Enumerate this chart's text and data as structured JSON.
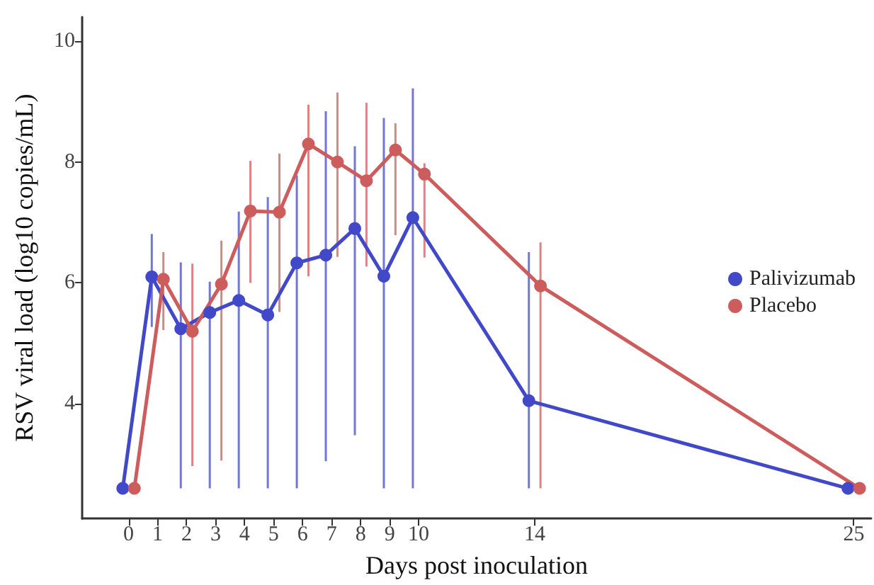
{
  "chart_data": {
    "type": "line",
    "xlabel": "Days post inoculation",
    "ylabel": "RSV viral load (log10 copies/mL)",
    "xlim": [
      -1.6,
      25.6
    ],
    "xticks": [
      0,
      1,
      2,
      3,
      4,
      5,
      6,
      7,
      8,
      9,
      10,
      14,
      25
    ],
    "ylim": [
      2.1,
      10.4
    ],
    "yticks": [
      4,
      6,
      8,
      10
    ],
    "grid": false,
    "legend": "right",
    "marker": "circle",
    "line_style": "solid",
    "series": [
      {
        "name": "Palivizumab",
        "color": "#4149c9",
        "x": [
          -0.2,
          0.8,
          1.8,
          2.8,
          3.8,
          4.8,
          5.8,
          6.8,
          7.8,
          8.8,
          9.8,
          13.8,
          24.8
        ],
        "values": [
          2.6,
          6.1,
          5.24,
          5.51,
          5.71,
          5.47,
          6.33,
          6.46,
          6.9,
          6.11,
          7.08,
          4.05,
          2.6
        ],
        "errors": [
          null,
          [
            5.27,
            6.81
          ],
          [
            2.6,
            6.34
          ],
          [
            2.6,
            6.02
          ],
          [
            2.6,
            7.18
          ],
          [
            2.6,
            7.42
          ],
          [
            2.6,
            7.78
          ],
          [
            3.05,
            8.84
          ],
          [
            3.48,
            8.26
          ],
          [
            2.6,
            8.73
          ],
          [
            2.6,
            9.22
          ],
          [
            2.6,
            6.51
          ],
          null
        ]
      },
      {
        "name": "Placebo",
        "color": "#cd5c5c",
        "x": [
          0.2,
          1.2,
          2.2,
          3.2,
          4.2,
          5.2,
          6.2,
          7.2,
          8.2,
          9.2,
          10.2,
          14.2,
          25.2
        ],
        "values": [
          2.6,
          6.06,
          5.2,
          5.98,
          7.19,
          7.17,
          8.3,
          8.0,
          7.69,
          8.2,
          7.8,
          5.95,
          2.6
        ],
        "errors": [
          null,
          [
            5.22,
            6.51
          ],
          [
            2.97,
            6.32
          ],
          [
            3.06,
            6.7
          ],
          [
            6.0,
            8.02
          ],
          [
            5.52,
            8.14
          ],
          [
            6.11,
            8.95
          ],
          [
            6.43,
            9.15
          ],
          [
            6.27,
            8.98
          ],
          [
            6.79,
            8.64
          ],
          [
            6.42,
            7.98
          ],
          [
            2.6,
            6.67
          ],
          null
        ]
      }
    ]
  }
}
